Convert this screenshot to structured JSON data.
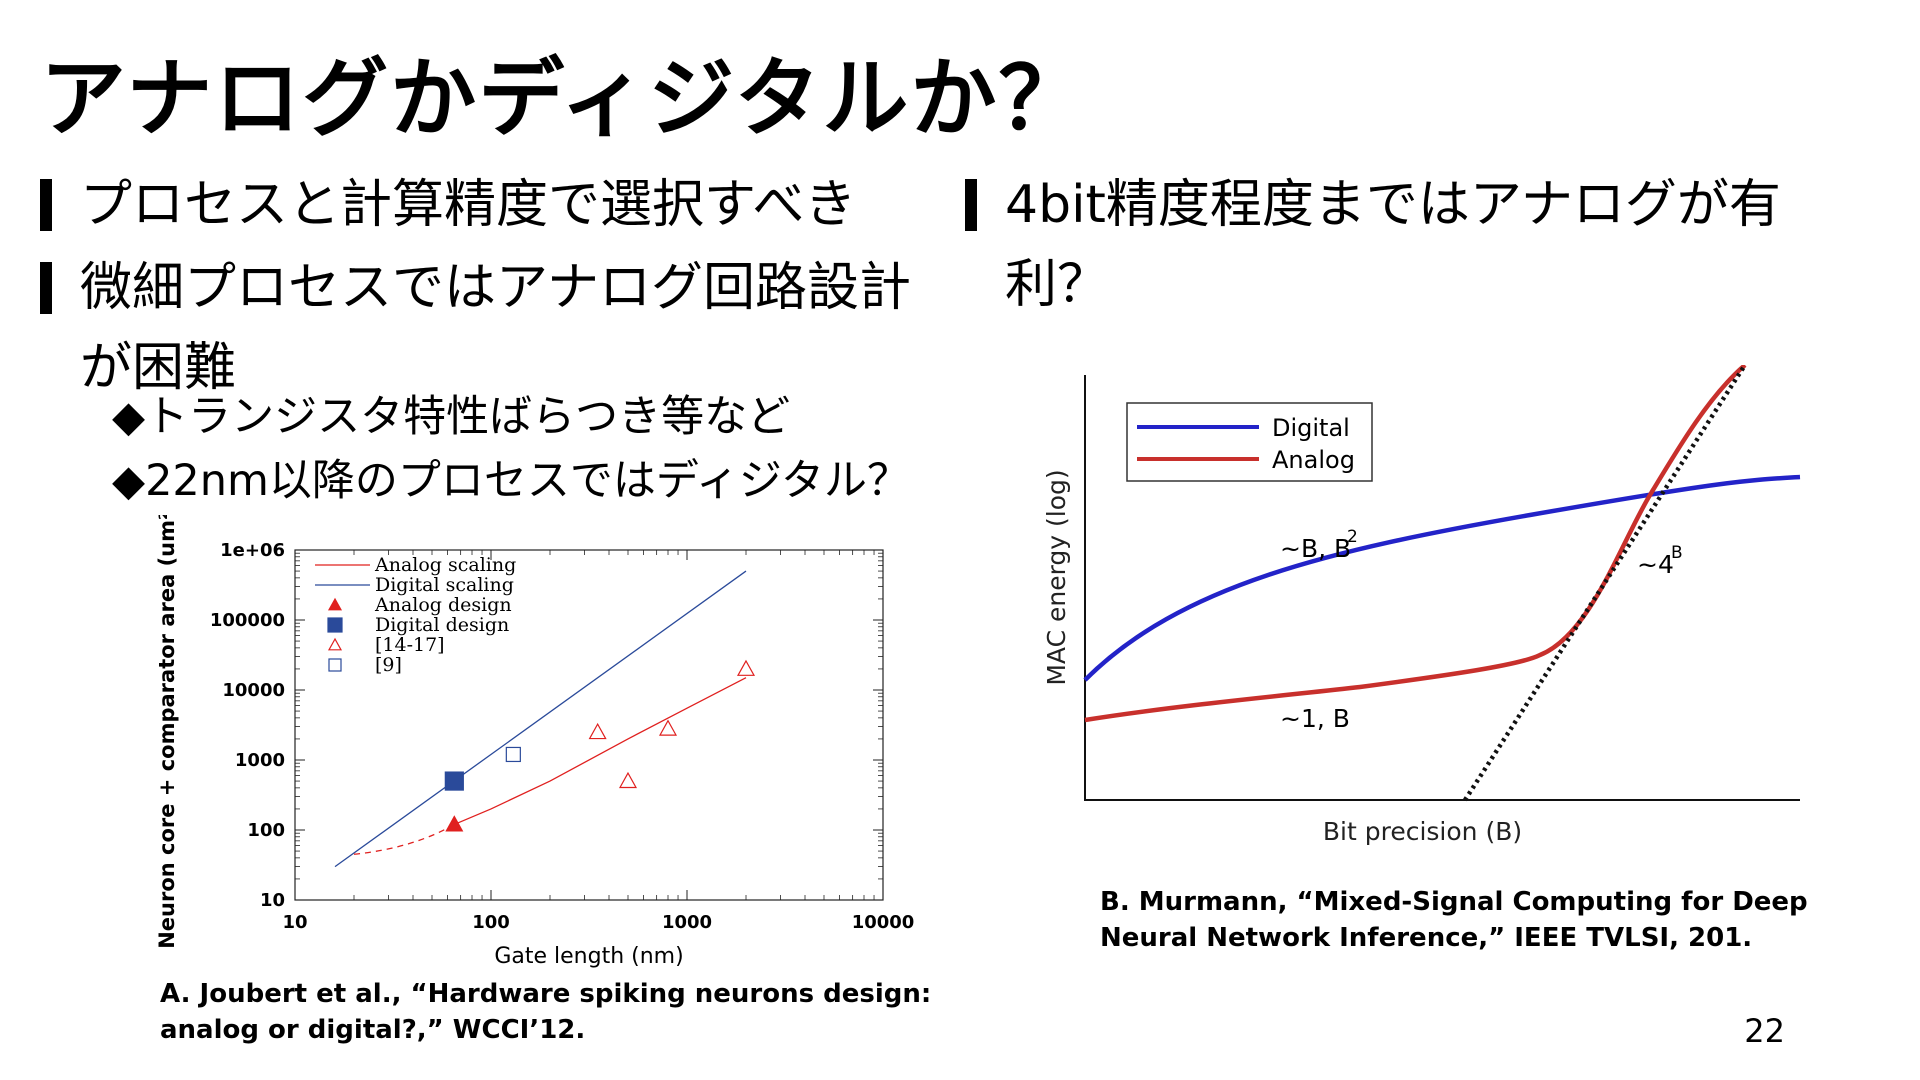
{
  "slide": {
    "title": "アナログかディジタルか？",
    "page_number": "22"
  },
  "left": {
    "bullets": [
      "プロセスと計算精度で選択すべき",
      "微細プロセスではアナログ回路設計が困難"
    ],
    "subbullets": [
      "◆トランジスタ特性ばらつき等など",
      "◆22nm以降のプロセスではディジタル？"
    ],
    "citation_line1": "A. Joubert et al., “Hardware spiking neurons design:",
    "citation_line2": "analog or digital?,” WCCI’12."
  },
  "right": {
    "bullet": "4bit精度程度まではアナログが有利？",
    "citation_line1": "B. Murmann, “Mixed-Signal Computing for Deep",
    "citation_line2": "Neural Network Inference,” IEEE TVLSI, 201."
  },
  "chart_data": [
    {
      "type": "scatter",
      "xlabel": "Gate length (nm)",
      "ylabel": "Neuron core + comparator area (um²)",
      "xscale": "log",
      "yscale": "log",
      "xlim": [
        10,
        10000
      ],
      "ylim": [
        10,
        1000000
      ],
      "xticks": [
        "10",
        "100",
        "1000",
        "10000"
      ],
      "yticks": [
        "10",
        "100",
        "1000",
        "10000",
        "100000",
        "1e+06"
      ],
      "legend_position": "top-left",
      "legend": [
        "Analog scaling",
        "Digital scaling",
        "Analog design",
        "Digital design",
        "[14-17]",
        "[9]"
      ],
      "colors": {
        "analog": "#e0201f",
        "digital": "#2a4a9a"
      },
      "series": [
        {
          "name": "Analog scaling",
          "kind": "line",
          "x": [
            65,
            100,
            200,
            500,
            1000,
            2000
          ],
          "y": [
            120,
            200,
            500,
            2000,
            5500,
            15000
          ]
        },
        {
          "name": "Digital scaling",
          "kind": "line",
          "x": [
            16,
            2000
          ],
          "y": [
            30,
            500000
          ]
        },
        {
          "name": "Analog design",
          "kind": "marker",
          "marker": "filled-triangle",
          "x": [
            65
          ],
          "y": [
            120
          ]
        },
        {
          "name": "Digital design",
          "kind": "marker",
          "marker": "filled-square",
          "x": [
            65
          ],
          "y": [
            500
          ]
        },
        {
          "name": "[14-17]",
          "kind": "marker",
          "marker": "open-triangle",
          "x": [
            350,
            500,
            800,
            2000
          ],
          "y": [
            2500,
            500,
            2800,
            20000
          ]
        },
        {
          "name": "[9]",
          "kind": "marker",
          "marker": "open-square",
          "x": [
            130
          ],
          "y": [
            1200
          ]
        }
      ]
    },
    {
      "type": "line",
      "xlabel": "Bit precision (B)",
      "ylabel": "MAC energy (log)",
      "legend_position": "top-left",
      "legend": [
        "Digital",
        "Analog"
      ],
      "colors": {
        "digital": "#2323c8",
        "analog": "#c8302c"
      },
      "annotations": [
        "~B, B",
        "2",
        "~4",
        "B",
        "~1, B"
      ]
    }
  ]
}
